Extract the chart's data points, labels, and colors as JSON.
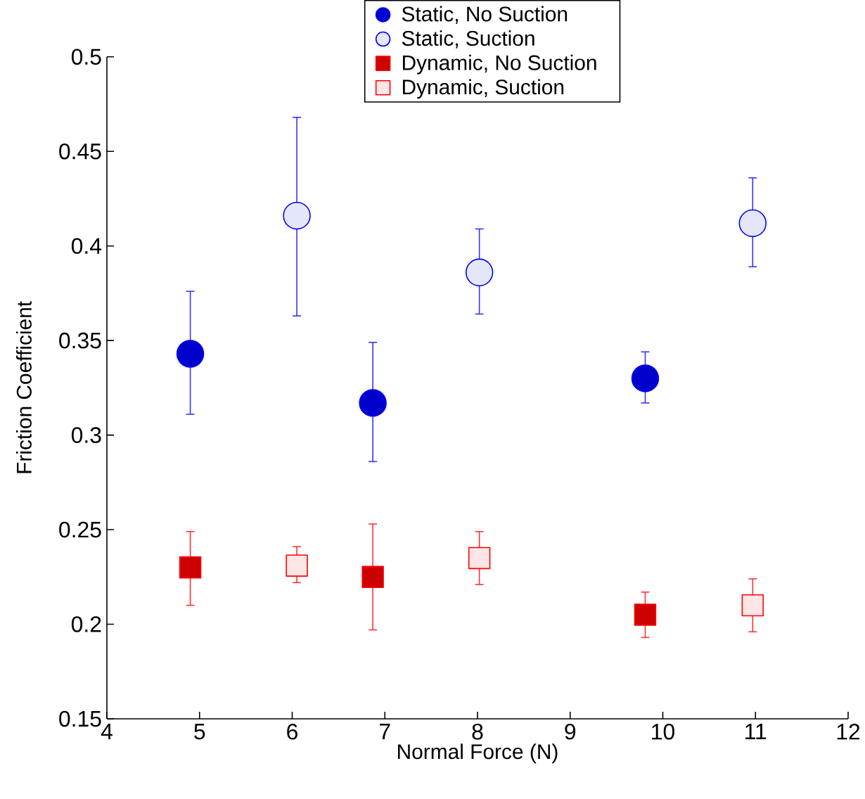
{
  "chart_data": {
    "type": "scatter",
    "xlabel": "Normal Force (N)",
    "ylabel": "Friction Coefficient",
    "xlim": [
      4,
      12
    ],
    "ylim": [
      0.15,
      0.5
    ],
    "xticks": [
      4,
      5,
      6,
      7,
      8,
      9,
      10,
      11,
      12
    ],
    "yticks": [
      0.15,
      0.2,
      0.25,
      0.3,
      0.35,
      0.4,
      0.45,
      0.5
    ],
    "legend": "top",
    "grid": false,
    "series": [
      {
        "name": "Static, No Suction",
        "color": "#0000cc",
        "marker": "circle",
        "x": [
          4.9,
          6.87,
          9.81
        ],
        "values": [
          0.343,
          0.317,
          0.33
        ],
        "errors": [
          [
            0.311,
            0.376
          ],
          [
            0.286,
            0.349
          ],
          [
            0.317,
            0.344
          ]
        ]
      },
      {
        "name": "Static, Suction",
        "color": "#e6e6fa",
        "marker": "circle",
        "x": [
          6.05,
          8.02,
          10.97
        ],
        "values": [
          0.416,
          0.386,
          0.412
        ],
        "errors": [
          [
            0.363,
            0.468
          ],
          [
            0.364,
            0.409
          ],
          [
            0.389,
            0.436
          ]
        ]
      },
      {
        "name": "Dynamic, No Suction",
        "color": "#cc0000",
        "marker": "square",
        "x": [
          4.9,
          6.87,
          9.81
        ],
        "values": [
          0.23,
          0.225,
          0.205
        ],
        "errors": [
          [
            0.21,
            0.249
          ],
          [
            0.197,
            0.253
          ],
          [
            0.193,
            0.217
          ]
        ]
      },
      {
        "name": "Dynamic, Suction",
        "color": "#ffe6e6",
        "marker": "square",
        "x": [
          6.05,
          8.02,
          10.97
        ],
        "values": [
          0.231,
          0.235,
          0.21
        ],
        "errors": [
          [
            0.222,
            0.241
          ],
          [
            0.221,
            0.249
          ],
          [
            0.196,
            0.224
          ]
        ]
      }
    ]
  }
}
